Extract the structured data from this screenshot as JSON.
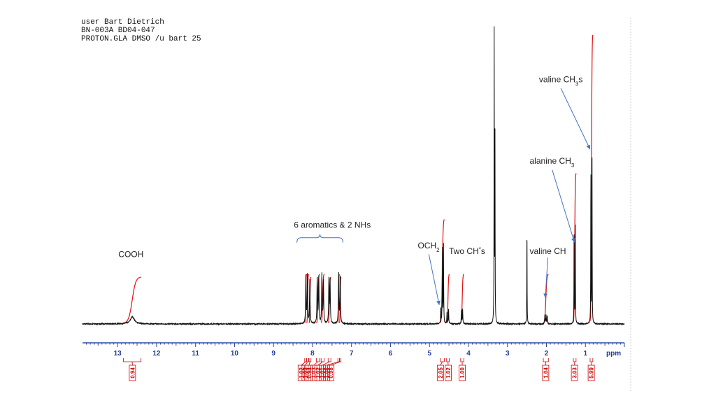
{
  "header": {
    "line1": "user Bart Dietrich",
    "line2": "BN-003A BD04-047",
    "line3": "PROTON.GLA DMSO /u bart 25"
  },
  "colors": {
    "spectrum": "#111111",
    "integral": "#e01010",
    "axis": "#2a4aa8",
    "arrow": "#4472c4",
    "integral_box": "#cc0000"
  },
  "chart_data": {
    "type": "line",
    "xlabel": "ppm",
    "x_reversed": true,
    "xlim": [
      13.9,
      0.0
    ],
    "x_ticks": [
      13,
      12,
      11,
      10,
      9,
      8,
      7,
      6,
      5,
      4,
      3,
      2,
      1
    ],
    "peaks": [
      {
        "ppm": 12.62,
        "height": 0.025,
        "width": 0.06
      },
      {
        "ppm": 8.17,
        "height": 0.17,
        "width": 0.008
      },
      {
        "ppm": 8.13,
        "height": 0.17,
        "width": 0.008
      },
      {
        "ppm": 8.07,
        "height": 0.15,
        "width": 0.008
      },
      {
        "ppm": 7.88,
        "height": 0.16,
        "width": 0.008
      },
      {
        "ppm": 7.84,
        "height": 0.16,
        "width": 0.008
      },
      {
        "ppm": 7.76,
        "height": 0.17,
        "width": 0.008
      },
      {
        "ppm": 7.72,
        "height": 0.15,
        "width": 0.008
      },
      {
        "ppm": 7.58,
        "height": 0.15,
        "width": 0.008
      },
      {
        "ppm": 7.55,
        "height": 0.15,
        "width": 0.008
      },
      {
        "ppm": 7.33,
        "height": 0.17,
        "width": 0.008
      },
      {
        "ppm": 7.29,
        "height": 0.16,
        "width": 0.008
      },
      {
        "ppm": 4.71,
        "height": 0.05,
        "width": 0.006
      },
      {
        "ppm": 4.67,
        "height": 0.27,
        "width": 0.005
      },
      {
        "ppm": 4.64,
        "height": 0.27,
        "width": 0.005
      },
      {
        "ppm": 4.55,
        "height": 0.04,
        "width": 0.006
      },
      {
        "ppm": 4.51,
        "height": 0.05,
        "width": 0.006
      },
      {
        "ppm": 4.18,
        "height": 0.05,
        "width": 0.006
      },
      {
        "ppm": 4.15,
        "height": 0.05,
        "width": 0.006
      },
      {
        "ppm": 3.34,
        "height": 1.0,
        "width": 0.004
      },
      {
        "ppm": 3.32,
        "height": 0.64,
        "width": 0.004
      },
      {
        "ppm": 2.5,
        "height": 0.36,
        "width": 0.004
      },
      {
        "ppm": 2.04,
        "height": 0.03,
        "width": 0.006
      },
      {
        "ppm": 2.01,
        "height": 0.03,
        "width": 0.006
      },
      {
        "ppm": 1.98,
        "height": 0.03,
        "width": 0.006
      },
      {
        "ppm": 1.29,
        "height": 0.37,
        "width": 0.004
      },
      {
        "ppm": 1.26,
        "height": 0.35,
        "width": 0.004
      },
      {
        "ppm": 0.86,
        "height": 0.57,
        "width": 0.004
      },
      {
        "ppm": 0.83,
        "height": 0.56,
        "width": 0.004
      }
    ],
    "integrals": [
      {
        "from": 12.85,
        "to": 12.4,
        "rise": 0.16,
        "label_ppm": 12.62,
        "value": "0.94"
      },
      {
        "from": 8.2,
        "to": 8.15,
        "rise": 0.17,
        "label_ppm": 8.29,
        "value": "1.02"
      },
      {
        "from": 8.15,
        "to": 8.1,
        "rise": 0.17,
        "label_ppm": 8.19,
        "value": "1.03"
      },
      {
        "from": 8.09,
        "to": 8.04,
        "rise": 0.16,
        "label_ppm": 8.09,
        "value": "0.94"
      },
      {
        "from": 7.9,
        "to": 7.82,
        "rise": 0.17,
        "label_ppm": 7.97,
        "value": "1.03"
      },
      {
        "from": 7.78,
        "to": 7.7,
        "rise": 0.17,
        "label_ppm": 7.86,
        "value": "1.02"
      },
      {
        "from": 7.6,
        "to": 7.53,
        "rise": 0.16,
        "label_ppm": 7.75,
        "value": "1.01"
      },
      {
        "from": 7.35,
        "to": 7.31,
        "rise": 0.17,
        "label_ppm": 7.64,
        "value": "1.06"
      },
      {
        "from": 7.31,
        "to": 7.27,
        "rise": 0.16,
        "label_ppm": 7.53,
        "value": "0.98"
      },
      {
        "from": 4.72,
        "to": 4.62,
        "rise": 0.36,
        "label_ppm": 4.72,
        "value": "2.05"
      },
      {
        "from": 4.56,
        "to": 4.49,
        "rise": 0.17,
        "label_ppm": 4.52,
        "value": "1.02"
      },
      {
        "from": 4.2,
        "to": 4.12,
        "rise": 0.17,
        "label_ppm": 4.16,
        "value": "1.00"
      },
      {
        "from": 2.08,
        "to": 1.95,
        "rise": 0.17,
        "label_ppm": 2.02,
        "value": "1.04"
      },
      {
        "from": 1.31,
        "to": 1.24,
        "rise": 0.52,
        "label_ppm": 1.28,
        "value": "3.03"
      },
      {
        "from": 0.88,
        "to": 0.81,
        "rise": 1.0,
        "label_ppm": 0.85,
        "value": "5.99"
      }
    ],
    "annotations": [
      {
        "text": "COOH",
        "ppm": 12.98,
        "level": 0.23,
        "arrow": false
      },
      {
        "text": "6 aromatics & 2 NHs",
        "ppm": 8.48,
        "level": 0.33,
        "bracket": [
          8.4,
          7.22
        ]
      },
      {
        "text": "OCH",
        "sub": "2",
        "ppm": 5.3,
        "level": 0.26,
        "arrow_to": [
          4.75,
          0.065
        ]
      },
      {
        "text": "Two CH",
        "sup": "*",
        "tail": "s",
        "ppm": 4.5,
        "level": 0.24,
        "arrow": false
      },
      {
        "text": "valine CH",
        "ppm": 2.43,
        "level": 0.24,
        "arrow_to": [
          2.03,
          0.09
        ]
      },
      {
        "text": "alanine CH",
        "sub": "3",
        "ppm": 2.43,
        "level": 0.55,
        "arrow_to": [
          1.28,
          0.28
        ]
      },
      {
        "text": "valine CH",
        "sub": "3",
        "tail": "s",
        "ppm": 2.19,
        "level": 0.83,
        "arrow_to": [
          0.88,
          0.6
        ]
      }
    ]
  }
}
